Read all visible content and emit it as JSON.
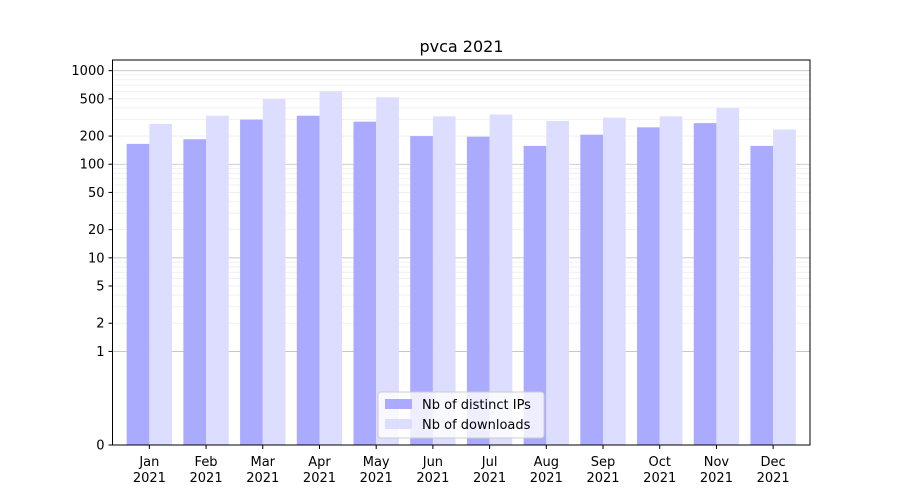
{
  "chart_data": {
    "type": "bar",
    "title": "pvca 2021",
    "xlabel": "",
    "ylabel": "",
    "yscale": "symlog",
    "ylim": [
      0,
      1300
    ],
    "yticks": [
      0,
      1,
      2,
      5,
      10,
      20,
      50,
      100,
      200,
      500,
      1000
    ],
    "ytick_labels": [
      "0",
      "1",
      "2",
      "5",
      "10",
      "20",
      "50",
      "100",
      "200",
      "500",
      "1000"
    ],
    "categories": [
      "Jan\n2021",
      "Feb\n2021",
      "Mar\n2021",
      "Apr\n2021",
      "May\n2021",
      "Jun\n2021",
      "Jul\n2021",
      "Aug\n2021",
      "Sep\n2021",
      "Oct\n2021",
      "Nov\n2021",
      "Dec\n2021"
    ],
    "series": [
      {
        "name": "Nb of distinct IPs",
        "color": "#aaaaff",
        "values": [
          165,
          185,
          300,
          330,
          285,
          200,
          197,
          157,
          207,
          248,
          275,
          157
        ]
      },
      {
        "name": "Nb of downloads",
        "color": "#ddddff",
        "values": [
          270,
          330,
          500,
          600,
          520,
          325,
          340,
          290,
          315,
          325,
          400,
          235
        ]
      }
    ],
    "legend_position": "bottom-center",
    "grid": true
  }
}
